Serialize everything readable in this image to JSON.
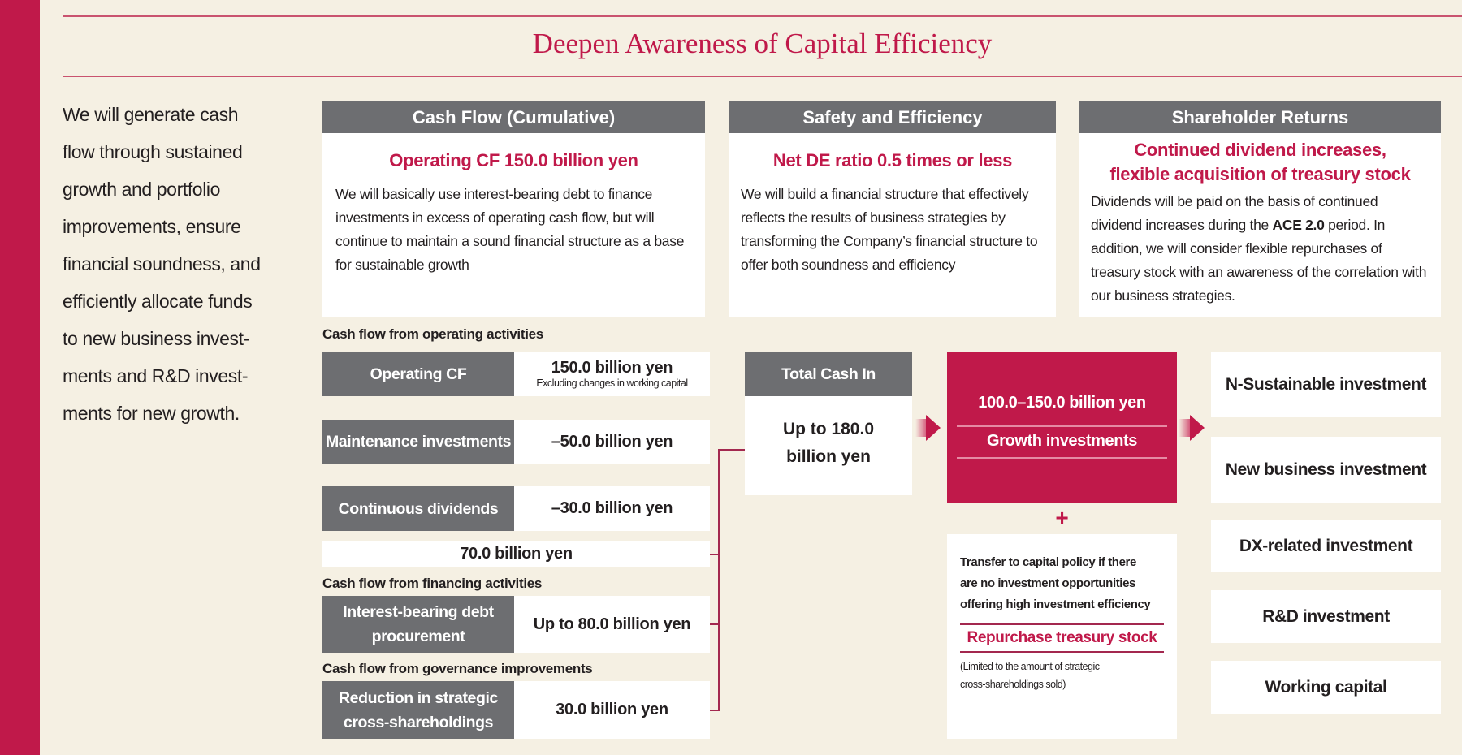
{
  "title": "Deepen Awareness of Capital Efficiency",
  "intro": [
    "We will generate cash",
    "flow through sustained",
    "growth and portfolio",
    "improvements, ensure",
    "financial soundness, and",
    "efficiently allocate funds",
    "to new business invest-",
    "ments and R&D invest-",
    "ments for new growth."
  ],
  "cards": [
    {
      "header": "Cash Flow (Cumulative)",
      "subtitle": "Operating CF 150.0 billion yen",
      "body": "We will basically use interest-bearing debt to finance investments in excess of operating cash flow, but will continue to maintain a sound financial structure as a base for sustainable growth"
    },
    {
      "header": "Safety and Efficiency",
      "subtitle": "Net DE ratio 0.5 times or less",
      "body": "We will build a financial structure that effectively reflects the results of business strategies by transforming the Company’s financial structure to offer both soundness and efficiency"
    },
    {
      "header": "Shareholder Returns",
      "subtitle1": "Continued dividend increases,",
      "subtitle2": "flexible acquisition of treasury stock",
      "body_pre": "Dividends will be paid on the basis of continued dividend increases during the ",
      "body_bold": "ACE 2.0",
      "body_post": " period. In addition, we will consider flexible repurchases of treasury stock with an awareness of the correlation with our business strategies."
    }
  ],
  "flow": {
    "sec_operating": "Cash flow from operating activities",
    "operating_cf": {
      "label": "Operating CF",
      "value": "150.0 billion yen",
      "note": "Excluding changes in working capital"
    },
    "maintenance": {
      "label": "Maintenance investments",
      "value": "–50.0 billion yen"
    },
    "dividends": {
      "label": "Continuous dividends",
      "value": "–30.0 billion yen"
    },
    "subtotal": "70.0 billion yen",
    "sec_financing": "Cash flow from financing activities",
    "debt": {
      "label1": "Interest-bearing debt",
      "label2": "procurement",
      "value": "Up to 80.0 billion yen"
    },
    "sec_governance": "Cash flow from governance improvements",
    "cross": {
      "label1": "Reduction in strategic",
      "label2": "cross-shareholdings",
      "value": "30.0 billion yen"
    },
    "total": {
      "header": "Total Cash In",
      "value1": "Up to 180.0",
      "value2": "billion yen"
    },
    "growth": {
      "amount": "100.0–150.0 billion yen",
      "label": "Growth investments"
    },
    "plus": "+",
    "transfer": {
      "text1": "Transfer to capital policy if there",
      "text2": "are no investment opportunities",
      "text3": "offering high investment efficiency",
      "action": "Repurchase treasury stock",
      "note1": "(Limited to the amount of strategic",
      "note2": "cross-shareholdings sold)"
    },
    "targets": [
      "N-Sustainable investment",
      "New business investment",
      "DX-related investment",
      "R&D investment",
      "Working capital"
    ]
  },
  "colors": {
    "accent": "#c0194a",
    "gray": "#6d6e71",
    "background": "#f5f0e3"
  }
}
